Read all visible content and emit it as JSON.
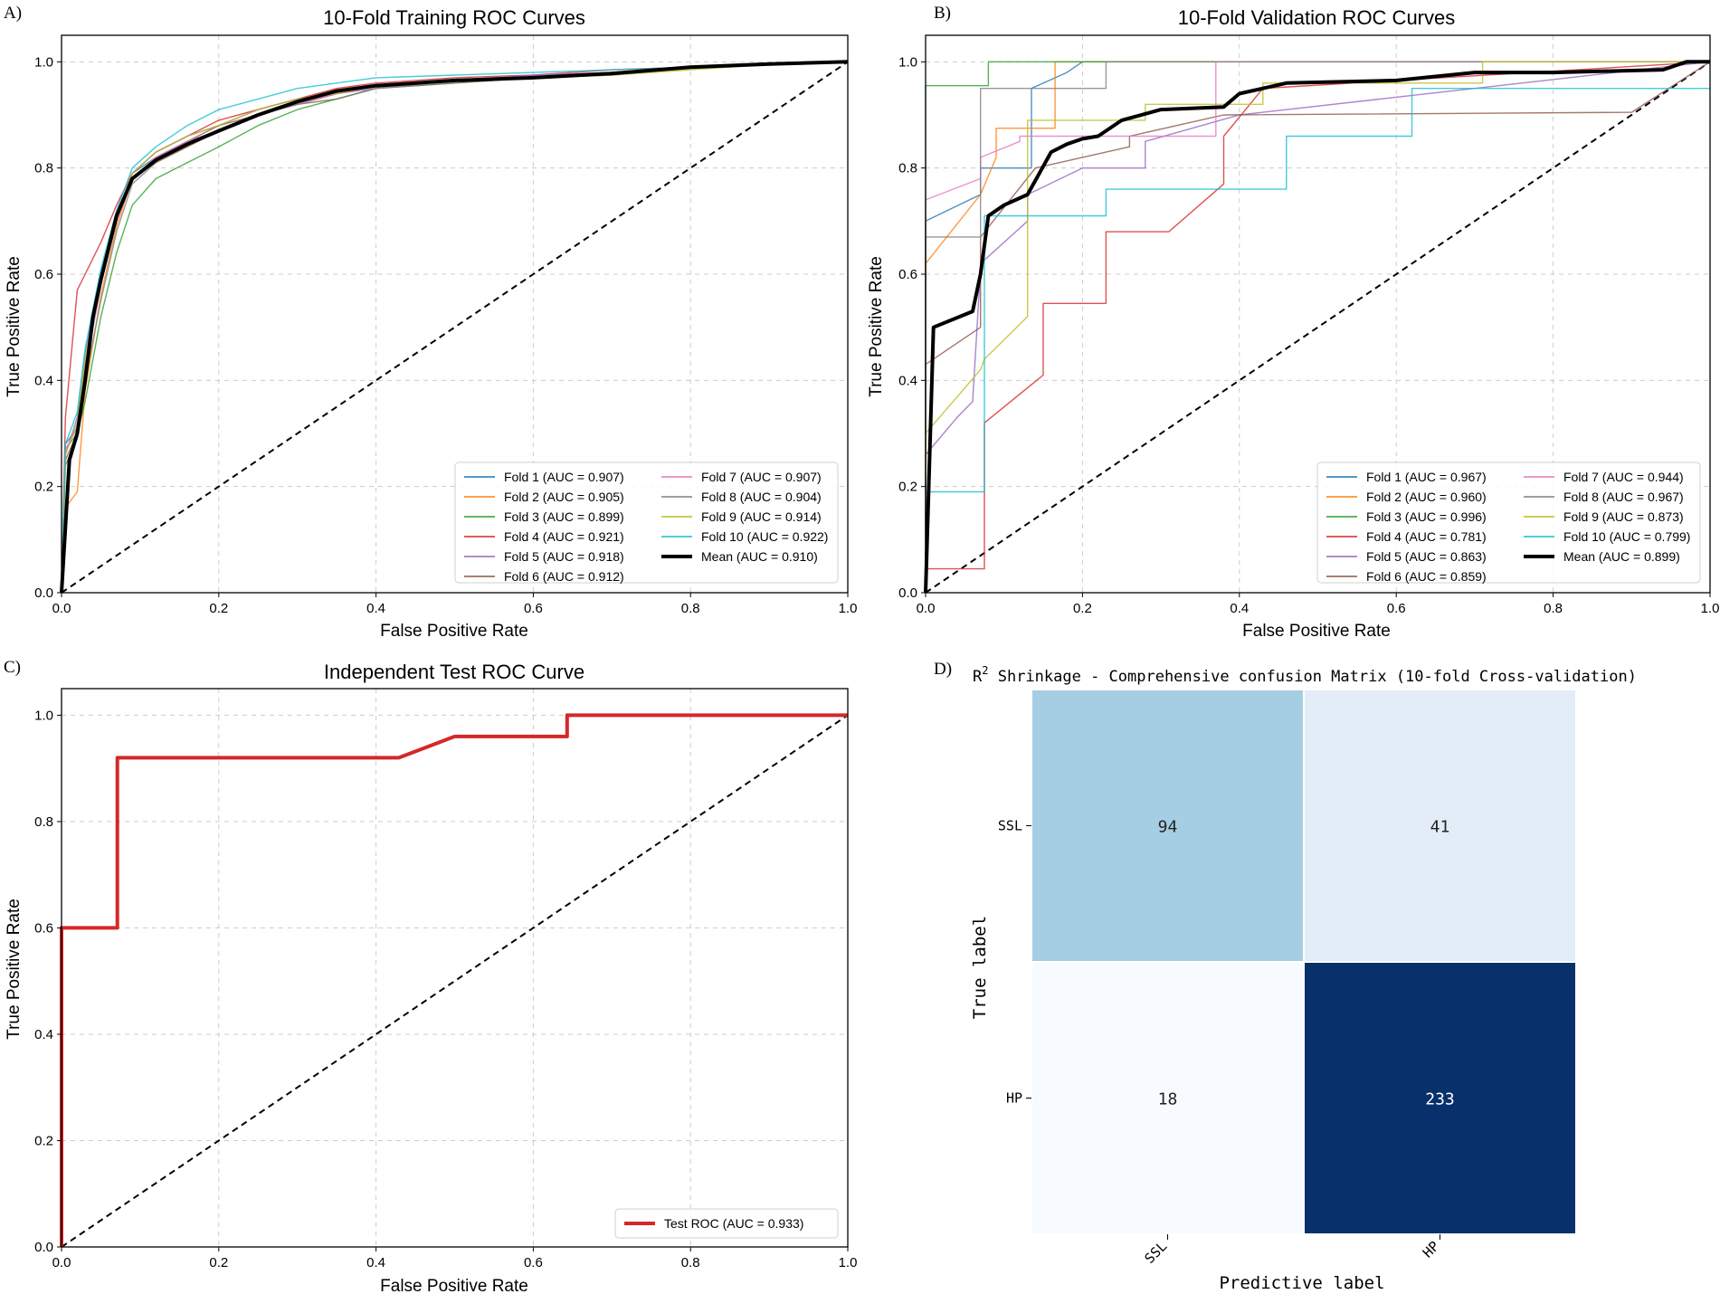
{
  "chart_data": [
    {
      "panel": "A)",
      "type": "line",
      "title": "10-Fold Training ROC Curves",
      "xlabel": "False Positive Rate",
      "ylabel": "True Positive Rate",
      "xlim": [
        0,
        1
      ],
      "ylim": [
        0,
        1.05
      ],
      "xticks": [
        "0.0",
        "0.2",
        "0.4",
        "0.6",
        "0.8",
        "1.0"
      ],
      "yticks": [
        "0.0",
        "0.2",
        "0.4",
        "0.6",
        "0.8",
        "1.0"
      ],
      "grid": true,
      "legend_position": "lower-right",
      "legend_columns": 2,
      "series": [
        {
          "name": "Fold 1 (AUC = 0.907)",
          "color": "#1f77b4",
          "x": [
            0,
            0.005,
            0.02,
            0.03,
            0.05,
            0.07,
            0.09,
            0.12,
            0.16,
            0.2,
            0.25,
            0.3,
            0.35,
            0.4,
            0.5,
            0.6,
            0.7,
            0.8,
            0.9,
            1
          ],
          "y": [
            0,
            0.28,
            0.31,
            0.42,
            0.58,
            0.7,
            0.79,
            0.82,
            0.85,
            0.87,
            0.9,
            0.92,
            0.94,
            0.95,
            0.965,
            0.97,
            0.98,
            0.99,
            0.995,
            1
          ]
        },
        {
          "name": "Fold 2 (AUC = 0.905)",
          "color": "#ff7f0e",
          "x": [
            0,
            0.005,
            0.02,
            0.03,
            0.05,
            0.07,
            0.09,
            0.12,
            0.16,
            0.2,
            0.25,
            0.3,
            0.35,
            0.4,
            0.5,
            0.6,
            0.7,
            0.8,
            0.9,
            1
          ],
          "y": [
            0,
            0.16,
            0.19,
            0.38,
            0.56,
            0.69,
            0.78,
            0.81,
            0.84,
            0.87,
            0.9,
            0.92,
            0.93,
            0.95,
            0.96,
            0.97,
            0.98,
            0.99,
            0.995,
            1
          ]
        },
        {
          "name": "Fold 3 (AUC = 0.899)",
          "color": "#2ca02c",
          "x": [
            0,
            0.005,
            0.02,
            0.03,
            0.05,
            0.07,
            0.09,
            0.12,
            0.16,
            0.2,
            0.25,
            0.3,
            0.35,
            0.4,
            0.5,
            0.6,
            0.7,
            0.8,
            0.9,
            1
          ],
          "y": [
            0,
            0.27,
            0.3,
            0.36,
            0.52,
            0.64,
            0.73,
            0.78,
            0.81,
            0.84,
            0.88,
            0.91,
            0.93,
            0.95,
            0.96,
            0.97,
            0.975,
            0.99,
            0.995,
            1
          ]
        },
        {
          "name": "Fold 4 (AUC = 0.921)",
          "color": "#d62728",
          "x": [
            0,
            0.005,
            0.02,
            0.03,
            0.05,
            0.07,
            0.09,
            0.12,
            0.16,
            0.2,
            0.25,
            0.3,
            0.35,
            0.4,
            0.5,
            0.6,
            0.7,
            0.8,
            0.9,
            1
          ],
          "y": [
            0,
            0.33,
            0.57,
            0.6,
            0.66,
            0.73,
            0.79,
            0.83,
            0.86,
            0.89,
            0.91,
            0.93,
            0.95,
            0.96,
            0.97,
            0.975,
            0.985,
            0.99,
            0.995,
            1
          ]
        },
        {
          "name": "Fold 5 (AUC = 0.918)",
          "color": "#9467bd",
          "x": [
            0,
            0.005,
            0.02,
            0.03,
            0.05,
            0.07,
            0.09,
            0.12,
            0.16,
            0.2,
            0.25,
            0.3,
            0.35,
            0.4,
            0.5,
            0.6,
            0.7,
            0.8,
            0.9,
            1
          ],
          "y": [
            0,
            0.26,
            0.33,
            0.45,
            0.6,
            0.71,
            0.79,
            0.83,
            0.86,
            0.88,
            0.91,
            0.93,
            0.94,
            0.955,
            0.965,
            0.975,
            0.98,
            0.99,
            0.995,
            1
          ]
        },
        {
          "name": "Fold 6 (AUC = 0.912)",
          "color": "#8c564b",
          "x": [
            0,
            0.005,
            0.02,
            0.03,
            0.05,
            0.07,
            0.09,
            0.12,
            0.16,
            0.2,
            0.25,
            0.3,
            0.35,
            0.4,
            0.5,
            0.6,
            0.7,
            0.8,
            0.9,
            1
          ],
          "y": [
            0,
            0.25,
            0.3,
            0.43,
            0.59,
            0.7,
            0.78,
            0.82,
            0.85,
            0.88,
            0.9,
            0.92,
            0.94,
            0.955,
            0.965,
            0.97,
            0.98,
            0.99,
            0.995,
            1
          ]
        },
        {
          "name": "Fold 7 (AUC = 0.907)",
          "color": "#e377c2",
          "x": [
            0,
            0.005,
            0.02,
            0.03,
            0.05,
            0.07,
            0.09,
            0.12,
            0.16,
            0.2,
            0.25,
            0.3,
            0.35,
            0.4,
            0.5,
            0.6,
            0.7,
            0.8,
            0.9,
            1
          ],
          "y": [
            0,
            0.27,
            0.31,
            0.42,
            0.58,
            0.7,
            0.78,
            0.82,
            0.85,
            0.87,
            0.9,
            0.92,
            0.94,
            0.95,
            0.965,
            0.97,
            0.98,
            0.99,
            0.995,
            1
          ]
        },
        {
          "name": "Fold 8 (AUC = 0.904)",
          "color": "#7f7f7f",
          "x": [
            0,
            0.005,
            0.02,
            0.03,
            0.05,
            0.07,
            0.09,
            0.12,
            0.16,
            0.2,
            0.25,
            0.3,
            0.35,
            0.4,
            0.5,
            0.6,
            0.7,
            0.8,
            0.9,
            1
          ],
          "y": [
            0,
            0.24,
            0.29,
            0.4,
            0.55,
            0.68,
            0.77,
            0.81,
            0.84,
            0.87,
            0.9,
            0.92,
            0.93,
            0.95,
            0.96,
            0.97,
            0.98,
            0.99,
            0.995,
            1
          ]
        },
        {
          "name": "Fold 9 (AUC = 0.914)",
          "color": "#bcbd22",
          "x": [
            0,
            0.005,
            0.02,
            0.03,
            0.05,
            0.07,
            0.09,
            0.12,
            0.16,
            0.2,
            0.25,
            0.3,
            0.35,
            0.4,
            0.5,
            0.6,
            0.7,
            0.8,
            0.9,
            1
          ],
          "y": [
            0,
            0.26,
            0.32,
            0.44,
            0.59,
            0.71,
            0.79,
            0.83,
            0.86,
            0.88,
            0.91,
            0.93,
            0.94,
            0.955,
            0.965,
            0.97,
            0.975,
            0.985,
            0.995,
            1
          ]
        },
        {
          "name": "Fold 10 (AUC = 0.922)",
          "color": "#17becf",
          "x": [
            0,
            0.005,
            0.02,
            0.03,
            0.05,
            0.07,
            0.09,
            0.12,
            0.16,
            0.2,
            0.25,
            0.3,
            0.35,
            0.4,
            0.5,
            0.6,
            0.7,
            0.8,
            0.9,
            1
          ],
          "y": [
            0,
            0.28,
            0.34,
            0.46,
            0.61,
            0.72,
            0.8,
            0.84,
            0.88,
            0.91,
            0.93,
            0.95,
            0.96,
            0.97,
            0.975,
            0.98,
            0.985,
            0.99,
            0.995,
            1
          ]
        },
        {
          "name": "Mean (AUC = 0.910)",
          "color": "#000000",
          "bold": true,
          "x": [
            0,
            0.01,
            0.02,
            0.03,
            0.04,
            0.05,
            0.07,
            0.09,
            0.12,
            0.16,
            0.2,
            0.25,
            0.3,
            0.35,
            0.4,
            0.5,
            0.6,
            0.7,
            0.8,
            0.9,
            1
          ],
          "y": [
            0,
            0.25,
            0.3,
            0.4,
            0.52,
            0.59,
            0.71,
            0.78,
            0.815,
            0.845,
            0.87,
            0.9,
            0.925,
            0.945,
            0.955,
            0.965,
            0.97,
            0.978,
            0.99,
            0.996,
            1
          ]
        }
      ]
    },
    {
      "panel": "B)",
      "type": "line",
      "title": "10-Fold Validation ROC Curves",
      "xlabel": "False Positive Rate",
      "ylabel": "True Positive Rate",
      "xlim": [
        0,
        1
      ],
      "ylim": [
        0,
        1.05
      ],
      "xticks": [
        "0.0",
        "0.2",
        "0.4",
        "0.6",
        "0.8",
        "1.0"
      ],
      "yticks": [
        "0.0",
        "0.2",
        "0.4",
        "0.6",
        "0.8",
        "1.0"
      ],
      "grid": true,
      "legend_position": "lower-right",
      "legend_columns": 2,
      "series": [
        {
          "name": "Fold 1 (AUC = 0.967)",
          "color": "#1f77b4",
          "x": [
            0,
            0,
            0.07,
            0.07,
            0.135,
            0.135,
            0.18,
            0.2,
            1
          ],
          "y": [
            0,
            0.7,
            0.75,
            0.8,
            0.8,
            0.95,
            0.98,
            1,
            1
          ]
        },
        {
          "name": "Fold 2 (AUC = 0.960)",
          "color": "#ff7f0e",
          "x": [
            0,
            0,
            0.07,
            0.09,
            0.09,
            0.165,
            0.165,
            1
          ],
          "y": [
            0,
            0.62,
            0.75,
            0.82,
            0.875,
            0.875,
            1,
            1
          ]
        },
        {
          "name": "Fold 3 (AUC = 0.996)",
          "color": "#2ca02c",
          "x": [
            0,
            0,
            0.08,
            0.08,
            1
          ],
          "y": [
            0,
            0.955,
            0.955,
            1,
            1
          ]
        },
        {
          "name": "Fold 4 (AUC = 0.781)",
          "color": "#d62728",
          "x": [
            0,
            0,
            0.075,
            0.075,
            0.15,
            0.15,
            0.23,
            0.23,
            0.31,
            0.38,
            0.38,
            0.43,
            1
          ],
          "y": [
            0,
            0.045,
            0.045,
            0.32,
            0.41,
            0.545,
            0.545,
            0.68,
            0.68,
            0.77,
            0.86,
            0.95,
            1
          ]
        },
        {
          "name": "Fold 5 (AUC = 0.863)",
          "color": "#9467bd",
          "x": [
            0,
            0,
            0.04,
            0.06,
            0.07,
            0.07,
            0.13,
            0.13,
            0.2,
            0.28,
            0.28,
            0.4,
            1
          ],
          "y": [
            0,
            0.26,
            0.33,
            0.36,
            0.61,
            0.62,
            0.7,
            0.75,
            0.8,
            0.8,
            0.85,
            0.9,
            1
          ]
        },
        {
          "name": "Fold 6 (AUC = 0.859)",
          "color": "#8c564b",
          "x": [
            0,
            0,
            0.07,
            0.07,
            0.14,
            0.26,
            0.26,
            0.38,
            0.9,
            1
          ],
          "y": [
            0,
            0.43,
            0.5,
            0.67,
            0.8,
            0.84,
            0.86,
            0.9,
            0.905,
            1
          ]
        },
        {
          "name": "Fold 7 (AUC = 0.944)",
          "color": "#e377c2",
          "x": [
            0,
            0,
            0.07,
            0.07,
            0.12,
            0.12,
            0.37,
            0.37,
            0.69,
            0.69,
            1
          ],
          "y": [
            0,
            0.74,
            0.78,
            0.82,
            0.85,
            0.86,
            0.86,
            1,
            1,
            1,
            1
          ]
        },
        {
          "name": "Fold 8 (AUC = 0.967)",
          "color": "#7f7f7f",
          "x": [
            0,
            0,
            0.07,
            0.07,
            0.23,
            0.23,
            1
          ],
          "y": [
            0,
            0.67,
            0.67,
            0.95,
            0.95,
            1,
            1
          ]
        },
        {
          "name": "Fold 9 (AUC = 0.873)",
          "color": "#bcbd22",
          "x": [
            0,
            0,
            0.07,
            0.075,
            0.13,
            0.13,
            0.28,
            0.28,
            0.43,
            0.43,
            0.71,
            0.71,
            1
          ],
          "y": [
            0,
            0.3,
            0.42,
            0.44,
            0.52,
            0.89,
            0.89,
            0.92,
            0.92,
            0.96,
            0.96,
            1,
            1
          ]
        },
        {
          "name": "Fold 10 (AUC = 0.799)",
          "color": "#17becf",
          "x": [
            0,
            0,
            0.075,
            0.075,
            0.23,
            0.23,
            0.46,
            0.46,
            0.62,
            0.62,
            1
          ],
          "y": [
            0,
            0.19,
            0.19,
            0.71,
            0.71,
            0.76,
            0.76,
            0.86,
            0.86,
            0.95,
            0.95
          ]
        },
        {
          "name": "Mean (AUC = 0.899)",
          "color": "#000000",
          "bold": true,
          "x": [
            0,
            0.01,
            0.06,
            0.07,
            0.08,
            0.1,
            0.13,
            0.16,
            0.18,
            0.2,
            0.22,
            0.25,
            0.3,
            0.38,
            0.4,
            0.46,
            0.6,
            0.7,
            0.8,
            0.94,
            0.97,
            1
          ],
          "y": [
            0,
            0.5,
            0.53,
            0.6,
            0.71,
            0.73,
            0.75,
            0.83,
            0.845,
            0.855,
            0.86,
            0.89,
            0.91,
            0.915,
            0.94,
            0.96,
            0.965,
            0.98,
            0.98,
            0.985,
            1,
            1
          ]
        }
      ]
    },
    {
      "panel": "C)",
      "type": "line",
      "title": "Independent Test ROC Curve",
      "xlabel": "False Positive Rate",
      "ylabel": "True Positive Rate",
      "xlim": [
        0,
        1
      ],
      "ylim": [
        0,
        1.05
      ],
      "xticks": [
        "0.0",
        "0.2",
        "0.4",
        "0.6",
        "0.8",
        "1.0"
      ],
      "yticks": [
        "0.0",
        "0.2",
        "0.4",
        "0.6",
        "0.8",
        "1.0"
      ],
      "grid": true,
      "legend_position": "lower-right",
      "legend_columns": 1,
      "series": [
        {
          "name": "Test ROC (AUC = 0.933)",
          "color": "#d62728",
          "bold": true,
          "x": [
            0,
            0,
            0.071,
            0.071,
            0.429,
            0.5,
            0.643,
            0.643,
            1
          ],
          "y": [
            0,
            0.6,
            0.6,
            0.92,
            0.92,
            0.96,
            0.96,
            1,
            1
          ]
        }
      ]
    },
    {
      "panel": "D)",
      "type": "heatmap",
      "title": "R² Shrinkage - Comprehensive confusion Matrix (10-fold Cross-validation)",
      "title_prefix": "R",
      "title_sup": "2",
      "title_rest": " Shrinkage - Comprehensive confusion Matrix (10-fold Cross-validation)",
      "xlabel": "Predictive label",
      "ylabel": "True label",
      "row_labels": [
        "SSL",
        "HP"
      ],
      "col_labels": [
        "SSL",
        "HP"
      ],
      "values": [
        [
          94,
          41
        ],
        [
          18,
          233
        ]
      ],
      "colormap": "Blues"
    }
  ]
}
